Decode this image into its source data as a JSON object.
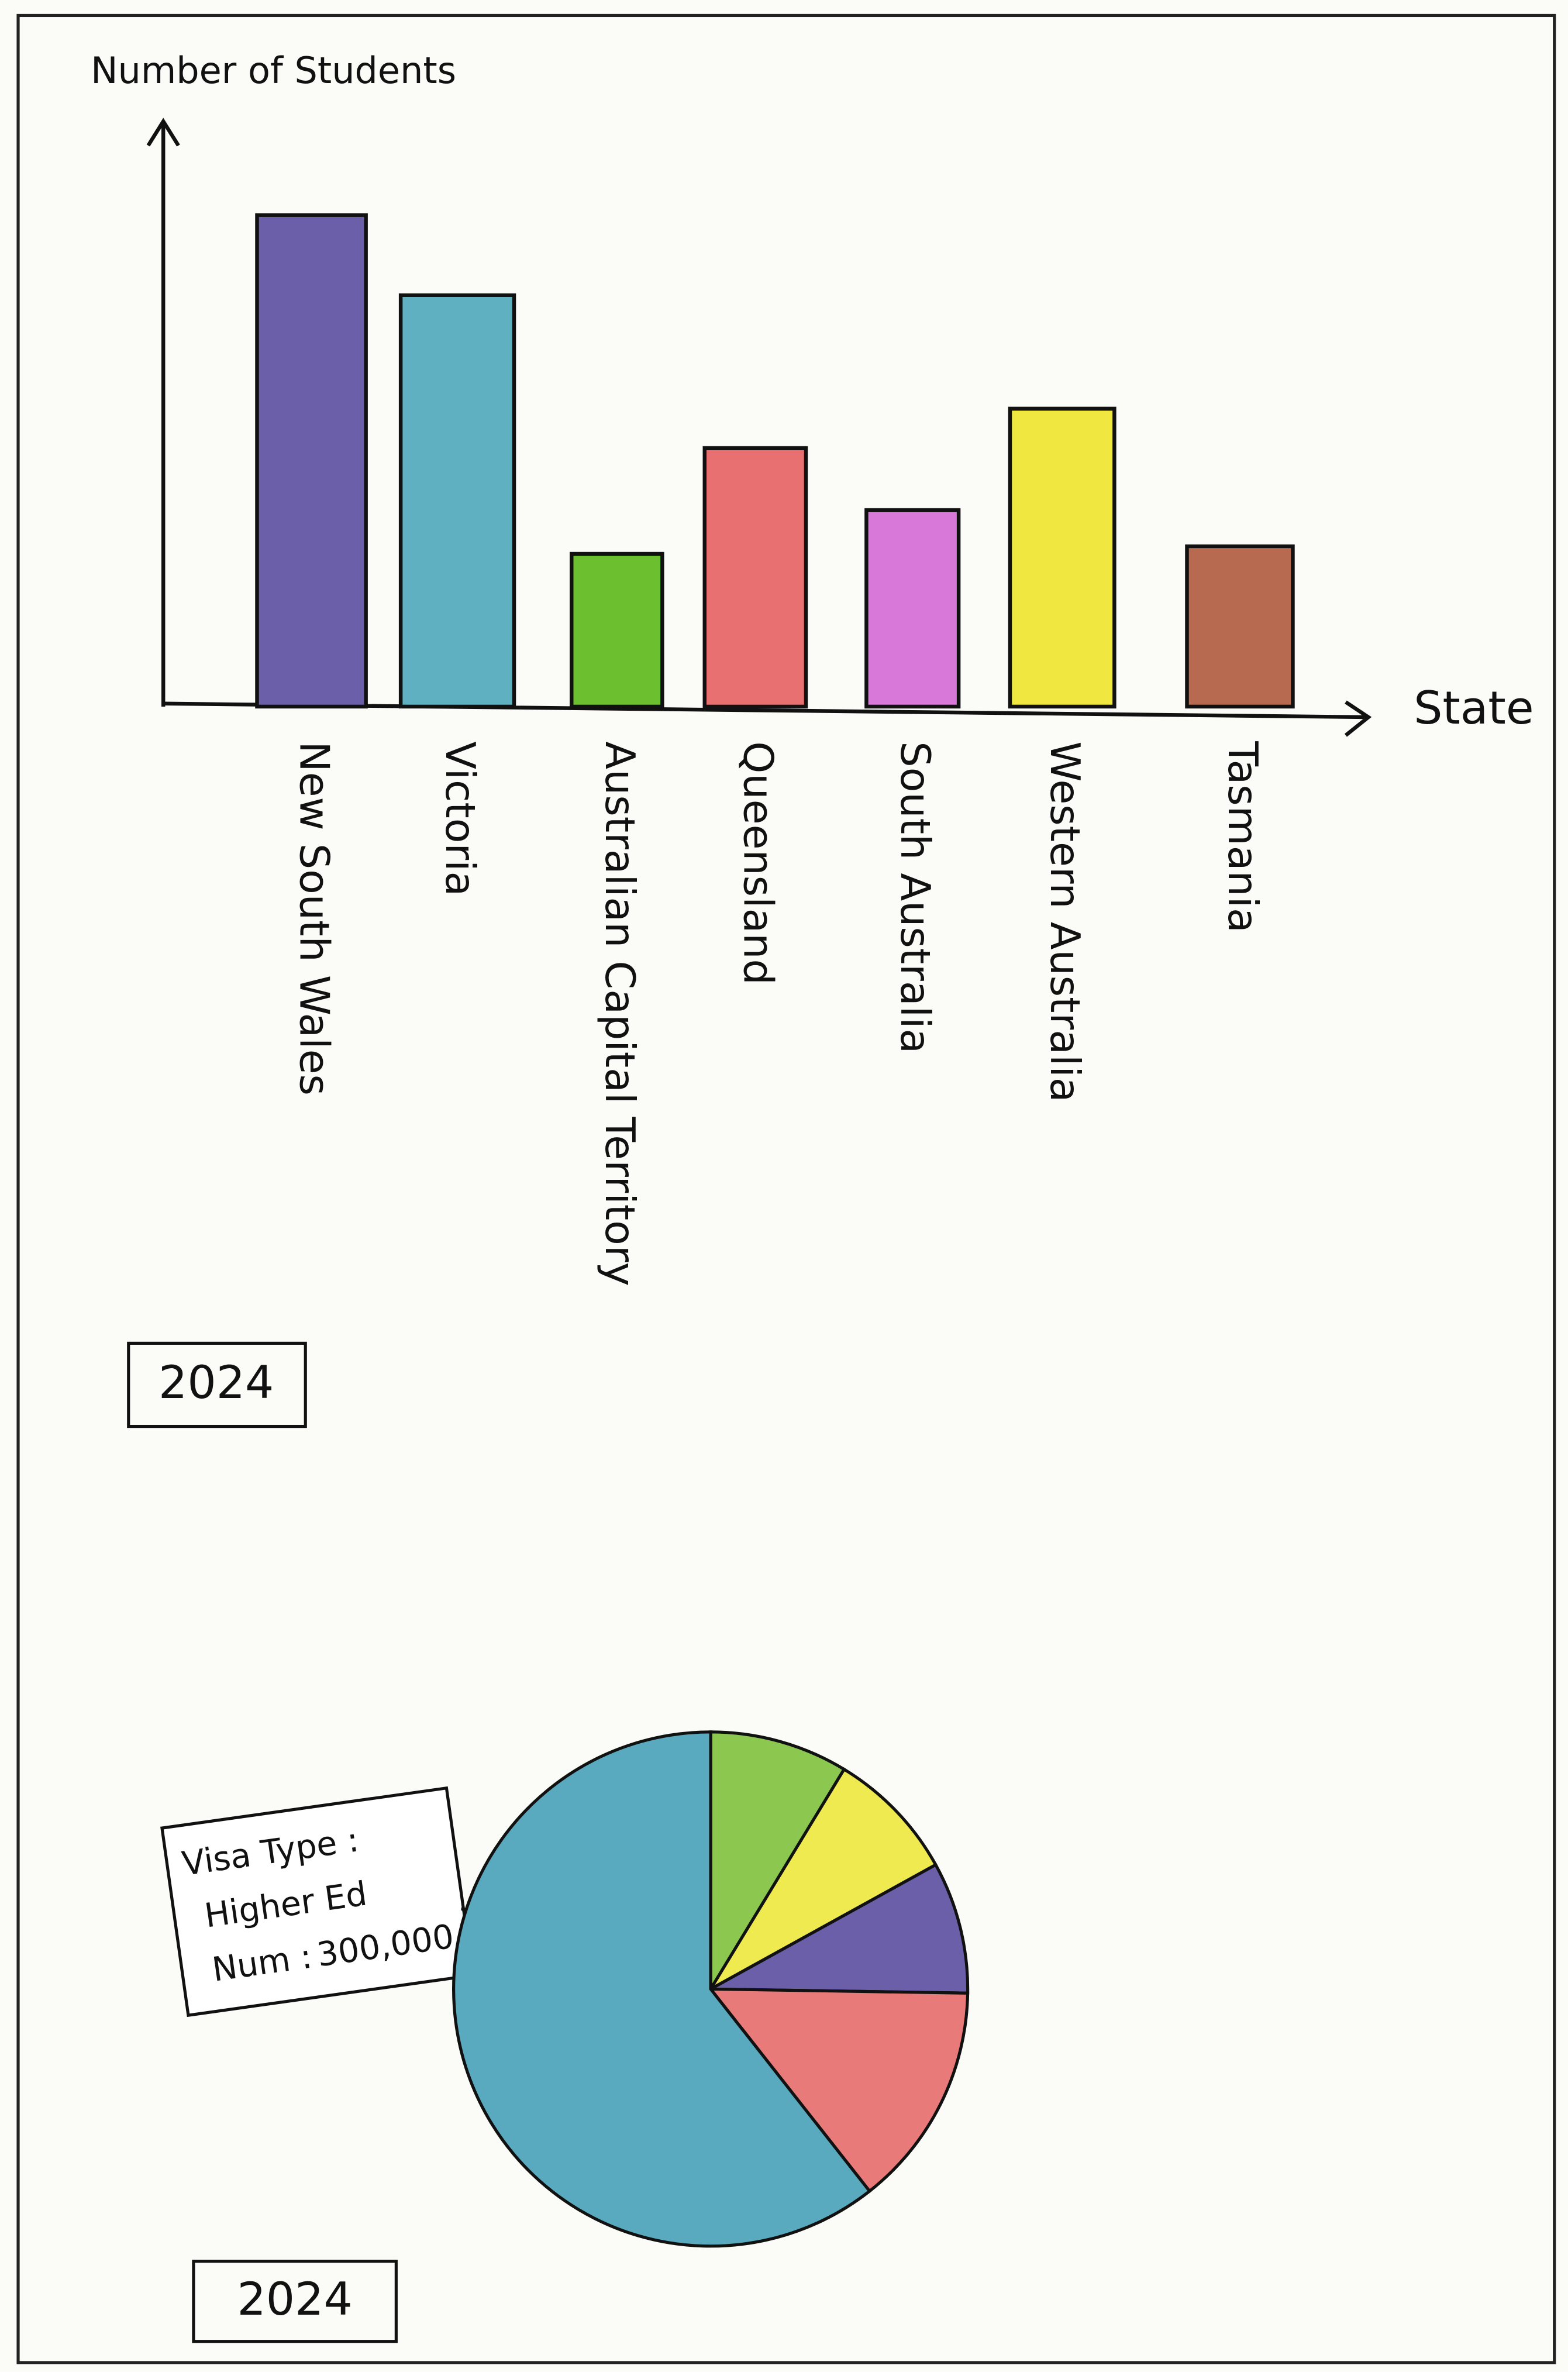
{
  "chart_data": [
    {
      "type": "bar",
      "ylabel": "Number of Students",
      "xlabel": "State",
      "note": "2024",
      "categories": [
        "New South Wales",
        "Victoria",
        "Australian Capital Territory",
        "Queensland",
        "South Australia",
        "Western Australia",
        "Tasmania"
      ],
      "values": [
        325,
        272,
        101,
        171,
        130,
        197,
        106
      ],
      "colors": [
        "#6a5fa8",
        "#5fb0c0",
        "#6cc030",
        "#e87070",
        "#d878d8",
        "#f0e840",
        "#b86a50"
      ],
      "ylim": [
        0,
        390
      ]
    },
    {
      "type": "pie",
      "note": "2024",
      "label_title": "Visa Type :",
      "value_label_title": "Num :",
      "categories": [
        null,
        null,
        null,
        null,
        "Higher Ed"
      ],
      "values": [
        43000,
        41000,
        41000,
        70000,
        300000
      ],
      "value_labels": [
        null,
        null,
        null,
        null,
        "300,000"
      ],
      "colors": [
        "#8cc850",
        "#eeea50",
        "#6a5fa8",
        "#e87a7a",
        "#5aaabf"
      ]
    }
  ]
}
